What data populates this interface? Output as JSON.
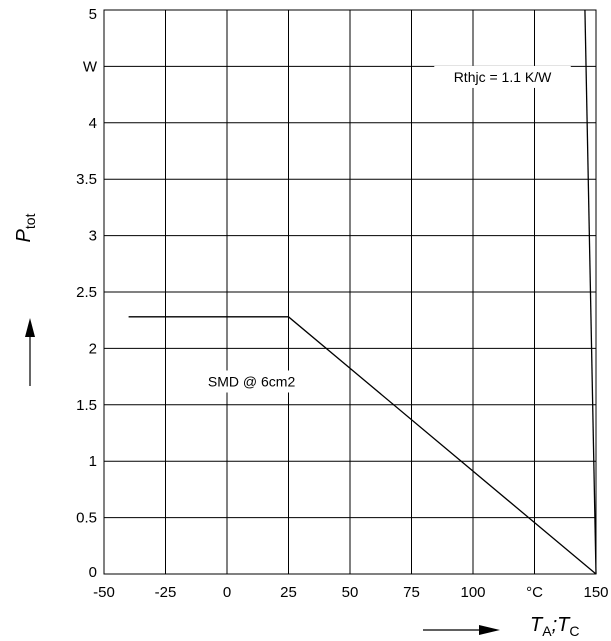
{
  "chart_data": {
    "type": "line",
    "xlabel": "T_A;T_C",
    "ylabel": "P_tot",
    "x_unit": "°C",
    "y_unit": "W",
    "xlim": [
      -50,
      150
    ],
    "ylim": [
      0,
      5
    ],
    "x_ticks": [
      "-50",
      "-25",
      "0",
      "25",
      "50",
      "75",
      "100",
      "°C",
      "150"
    ],
    "x_tick_values": [
      -50,
      -25,
      0,
      25,
      50,
      75,
      100,
      125,
      150
    ],
    "y_ticks": [
      "0",
      "0.5",
      "1",
      "1.5",
      "2",
      "2.5",
      "3",
      "3.5",
      "4",
      "W",
      "5"
    ],
    "y_tick_values": [
      0,
      0.5,
      1,
      1.5,
      2,
      2.5,
      3,
      3.5,
      4,
      4.5,
      5
    ],
    "grid": true,
    "series": [
      {
        "name": "SMD @ 6cm2",
        "x": [
          -40,
          25,
          150
        ],
        "y": [
          2.28,
          2.28,
          0
        ]
      },
      {
        "name": "Rthjc = 1.1 K/W",
        "x": [
          145.5,
          150
        ],
        "y": [
          5,
          0
        ]
      }
    ],
    "annotations": [
      {
        "text": "Rthjc = 1.1 K/W",
        "x": 112,
        "y": 4.38
      },
      {
        "text": "SMD @ 6cm2",
        "x": 10,
        "y": 1.68
      }
    ]
  }
}
